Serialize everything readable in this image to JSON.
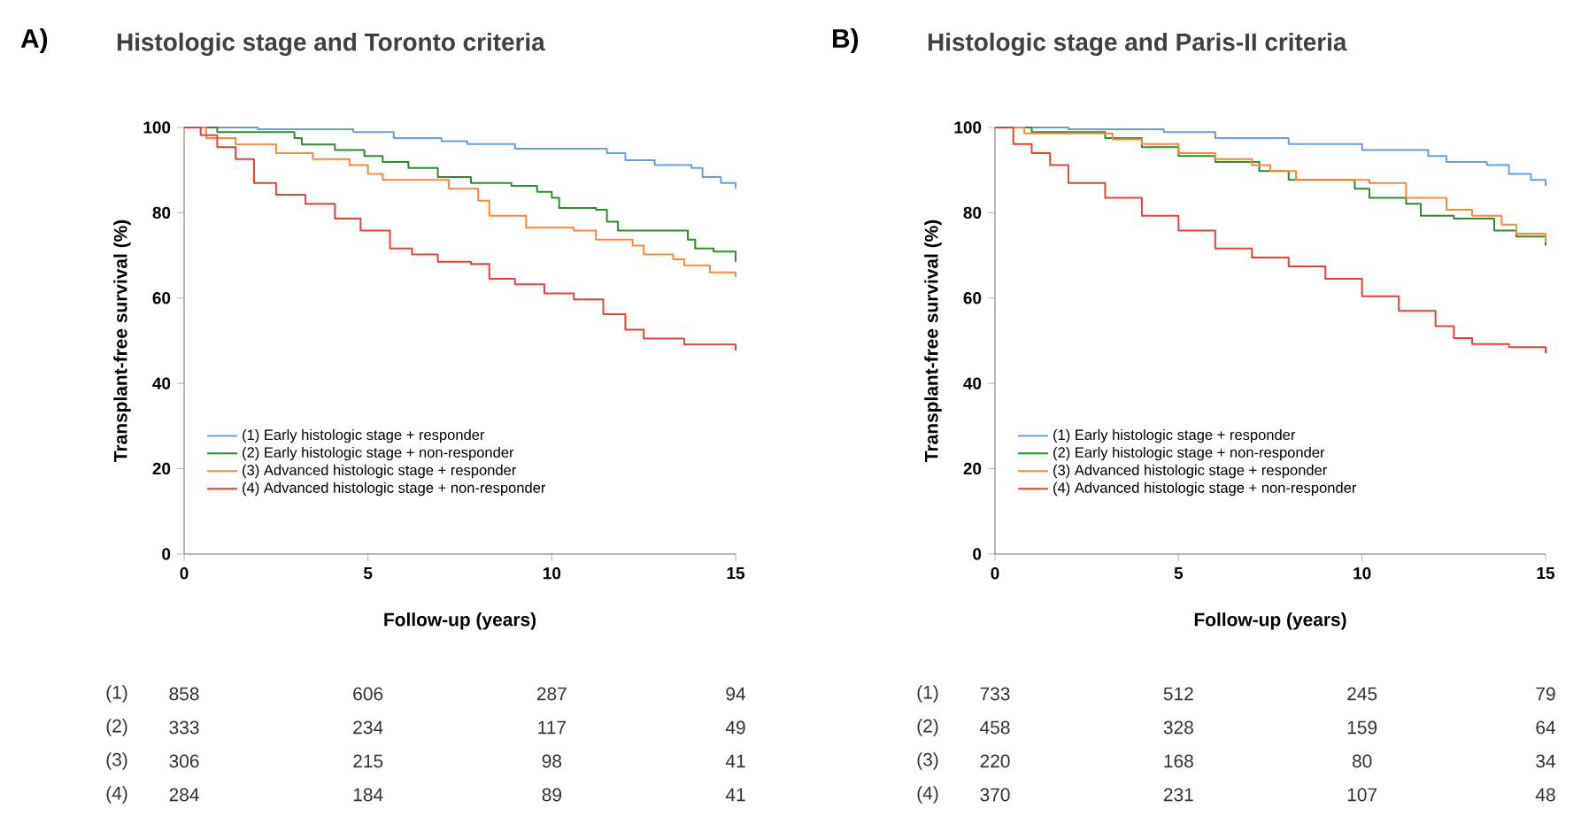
{
  "chart_data": [
    {
      "type": "step",
      "title": "Histologic stage and Toronto criteria",
      "xlabel": "Follow-up (years)",
      "ylabel": "Transplant-free survival (%)",
      "xlim": [
        0,
        15
      ],
      "ylim": [
        0,
        100
      ],
      "xticks": [
        0,
        5,
        10,
        15
      ],
      "yticks": [
        0,
        20,
        40,
        60,
        80,
        100
      ],
      "legend": "bottom left",
      "series": [
        {
          "name": "(1) Early histologic stage + responder",
          "color": "#6a9fd8",
          "x": [
            0,
            2,
            4.6,
            5.7,
            7,
            7.7,
            9,
            11.5,
            12,
            12.8,
            13.8,
            14.1,
            14.6,
            15
          ],
          "values": [
            100,
            99.6,
            98.9,
            97.5,
            96.8,
            96.1,
            95,
            94,
            92.3,
            91.2,
            90.5,
            88.4,
            87,
            85.6
          ]
        },
        {
          "name": "(2) Early histologic stage + non-responder",
          "color": "#2e8b2e",
          "x": [
            0,
            0.9,
            3,
            3.2,
            4.1,
            4.9,
            5.4,
            6.1,
            6.9,
            7.8,
            8.9,
            9.6,
            10,
            10.2,
            11.2,
            11.5,
            11.8,
            13.5,
            13.7,
            13.9,
            14.4,
            15
          ],
          "values": [
            100,
            98.9,
            97.5,
            96,
            94.7,
            93.3,
            91.9,
            90.5,
            88.4,
            87,
            86.3,
            84.9,
            83.5,
            81.1,
            80.7,
            77.9,
            75.8,
            75.8,
            73.7,
            71.6,
            70.9,
            68.5
          ]
        },
        {
          "name": "(3) Advanced histologic stage + responder",
          "color": "#f58a3c",
          "x": [
            0,
            0.6,
            1.4,
            2.5,
            3.5,
            4.5,
            5,
            5.4,
            7.2,
            8,
            8.3,
            9.3,
            10.6,
            11.2,
            12.2,
            12.5,
            13.3,
            13.6,
            14.3,
            15
          ],
          "values": [
            100,
            97.5,
            96,
            94,
            92.6,
            91.2,
            89.1,
            87.7,
            85.6,
            82.8,
            79.3,
            76.5,
            75.8,
            73.7,
            72.3,
            70.2,
            69.1,
            67.7,
            66,
            64.9
          ]
        },
        {
          "name": "(4) Advanced histologic stage + non-responder",
          "color": "#e8413c",
          "x": [
            0,
            0.45,
            0.9,
            1.4,
            1.9,
            2.5,
            3.3,
            4.1,
            4.8,
            5.6,
            6.2,
            6.9,
            7.8,
            8.3,
            9,
            9.8,
            10.6,
            11.4,
            12,
            12.5,
            13.6,
            15
          ],
          "values": [
            100,
            98.2,
            95.4,
            92.6,
            87,
            84.2,
            82.1,
            78.6,
            75.8,
            71.6,
            70.2,
            68.5,
            68,
            64.5,
            63.2,
            61.1,
            59.7,
            56.2,
            52.6,
            50.5,
            49.1,
            47.7
          ]
        }
      ],
      "annotations": [
        "A)",
        "(1)",
        "858",
        "606",
        "287",
        "94",
        "(2)",
        "333",
        "234",
        "117",
        "49",
        "(3)",
        "306",
        "215",
        "98",
        "41",
        "(4)",
        "284",
        "184",
        "89",
        "41"
      ]
    },
    {
      "type": "step",
      "title": "Histologic stage and Paris-II criteria",
      "xlabel": "Follow-up (years)",
      "ylabel": "Transplant-free survival (%)",
      "xlim": [
        0,
        15
      ],
      "ylim": [
        0,
        100
      ],
      "xticks": [
        0,
        5,
        10,
        15
      ],
      "yticks": [
        0,
        20,
        40,
        60,
        80,
        100
      ],
      "legend": "bottom left",
      "series": [
        {
          "name": "(1) Early histologic stage + responder",
          "color": "#6a9fd8",
          "x": [
            0,
            2,
            4.6,
            6,
            8,
            10,
            11.8,
            12.3,
            13.4,
            14,
            14.6,
            15
          ],
          "values": [
            100,
            99.6,
            98.9,
            97.5,
            96.1,
            94.7,
            93.3,
            91.9,
            91.2,
            89.1,
            87.7,
            86.3
          ]
        },
        {
          "name": "(2) Early histologic stage + non-responder",
          "color": "#2e8b2e",
          "x": [
            0,
            1,
            3,
            4,
            5,
            6,
            7.2,
            8,
            9.8,
            10.2,
            11.2,
            11.6,
            12.5,
            13.6,
            14.2,
            15
          ],
          "values": [
            100,
            98.9,
            97.5,
            95.4,
            93.3,
            91.9,
            89.8,
            87.7,
            85.6,
            83.5,
            82.1,
            79.3,
            78.6,
            75.8,
            74.4,
            72.3
          ]
        },
        {
          "name": "(3) Advanced histologic stage + responder",
          "color": "#f58a3c",
          "x": [
            0,
            0.8,
            3.2,
            4,
            5,
            6,
            7,
            7.5,
            8.2,
            10.2,
            11.2,
            12.3,
            13,
            13.8,
            14.2,
            15
          ],
          "values": [
            100,
            98.6,
            97.2,
            96.1,
            94,
            92.6,
            91.2,
            89.8,
            87.7,
            87,
            83.5,
            80.7,
            79.3,
            77.2,
            75.1,
            73
          ]
        },
        {
          "name": "(4) Advanced histologic stage + non-responder",
          "color": "#e8413c",
          "x": [
            0,
            0.5,
            1,
            1.5,
            2,
            3,
            4,
            5,
            6,
            7,
            8,
            9,
            10,
            11,
            12,
            12.5,
            13,
            14,
            15
          ],
          "values": [
            100,
            96.1,
            94,
            91.2,
            87,
            83.5,
            79.3,
            75.8,
            71.6,
            69.5,
            67.4,
            64.5,
            60.4,
            57,
            53.4,
            50.6,
            49.2,
            48.5,
            47.1
          ]
        }
      ],
      "annotations": [
        "B)",
        "(1)",
        "733",
        "512",
        "245",
        "79",
        "(2)",
        "458",
        "328",
        "159",
        "64",
        "(3)",
        "220",
        "168",
        "80",
        "34",
        "(4)",
        "370",
        "231",
        "107",
        "48"
      ]
    }
  ]
}
